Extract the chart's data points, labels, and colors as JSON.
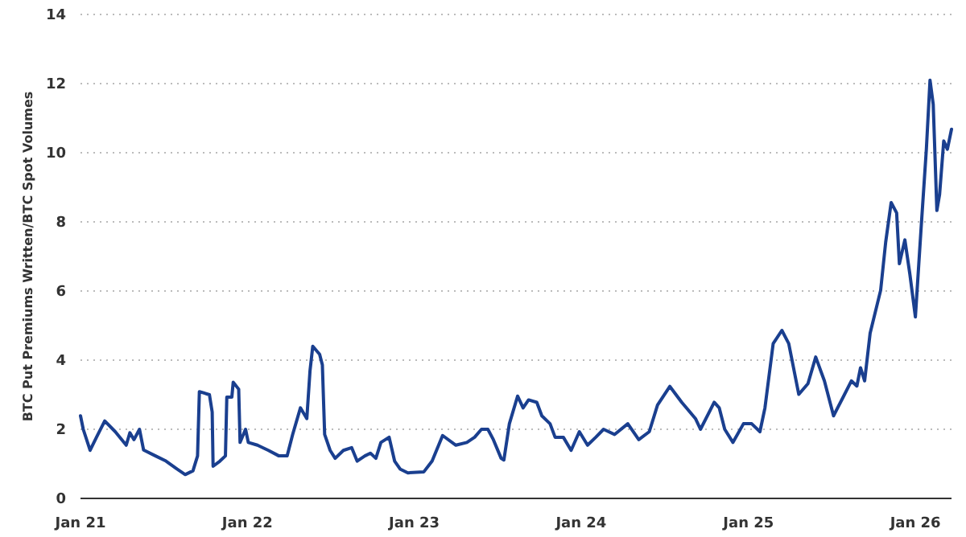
{
  "chart_data": {
    "type": "line",
    "ylabel": "BTC Put Premiums Written/BTC Spot Volumes",
    "xlim": [
      "2021-01-01",
      "2026-03-21"
    ],
    "xticks": [
      {
        "value": "2021-01-01",
        "label": "Jan 21"
      },
      {
        "value": "2022-01-01",
        "label": "Jan 22"
      },
      {
        "value": "2023-01-01",
        "label": "Jan 23"
      },
      {
        "value": "2024-01-01",
        "label": "Jan 24"
      },
      {
        "value": "2025-01-01",
        "label": "Jan 25"
      },
      {
        "value": "2026-01-01",
        "label": "Jan 26"
      }
    ],
    "ylim": [
      0,
      14
    ],
    "yticks": [
      0,
      2,
      4,
      6,
      8,
      10,
      12,
      14
    ],
    "grid": "y",
    "line_style": "solid",
    "marker": "none",
    "x": [
      "2021-01-01",
      "2021-01-07",
      "2021-01-22",
      "2021-02-05",
      "2021-02-23",
      "2021-03-18",
      "2021-04-11",
      "2021-04-19",
      "2021-04-28",
      "2021-05-10",
      "2021-05-19",
      "2021-06-14",
      "2021-07-07",
      "2021-07-31",
      "2021-08-18",
      "2021-09-04",
      "2021-09-14",
      "2021-09-18",
      "2021-10-10",
      "2021-10-16",
      "2021-10-18",
      "2021-11-02",
      "2021-11-14",
      "2021-11-17",
      "2021-11-28",
      "2021-12-01",
      "2021-12-13",
      "2021-12-16",
      "2021-12-28",
      "2022-01-03",
      "2022-01-23",
      "2022-02-16",
      "2022-03-11",
      "2022-03-29",
      "2022-04-10",
      "2022-04-27",
      "2022-05-11",
      "2022-05-18",
      "2022-05-24",
      "2022-06-08",
      "2022-06-14",
      "2022-06-19",
      "2022-07-01",
      "2022-07-12",
      "2022-07-30",
      "2022-08-17",
      "2022-08-29",
      "2022-09-15",
      "2022-09-27",
      "2022-10-09",
      "2022-10-20",
      "2022-11-07",
      "2022-11-19",
      "2022-12-01",
      "2022-12-18",
      "2023-01-22",
      "2023-02-09",
      "2023-03-04",
      "2023-04-02",
      "2023-04-26",
      "2023-05-13",
      "2023-05-28",
      "2023-06-11",
      "2023-06-23",
      "2023-07-10",
      "2023-07-16",
      "2023-07-28",
      "2023-08-15",
      "2023-08-27",
      "2023-09-08",
      "2023-09-26",
      "2023-10-07",
      "2023-10-25",
      "2023-11-05",
      "2023-11-23",
      "2023-12-10",
      "2023-12-28",
      "2024-01-15",
      "2024-02-02",
      "2024-02-19",
      "2024-03-14",
      "2024-04-12",
      "2024-05-06",
      "2024-05-29",
      "2024-06-16",
      "2024-07-13",
      "2024-08-08",
      "2024-09-07",
      "2024-09-18",
      "2024-10-18",
      "2024-10-29",
      "2024-11-10",
      "2024-11-28",
      "2024-12-21",
      "2025-01-08",
      "2025-01-26",
      "2025-02-06",
      "2025-02-24",
      "2025-03-15",
      "2025-03-30",
      "2025-04-21",
      "2025-05-11",
      "2025-05-28",
      "2025-06-16",
      "2025-07-06",
      "2025-07-27",
      "2025-08-14",
      "2025-08-26",
      "2025-09-03",
      "2025-09-12",
      "2025-09-24",
      "2025-10-17",
      "2025-10-28",
      "2025-11-09",
      "2025-11-21",
      "2025-11-27",
      "2025-12-09",
      "2025-12-20",
      "2026-01-01",
      "2026-01-13",
      "2026-01-25",
      "2026-02-02",
      "2026-02-09",
      "2026-02-17",
      "2026-02-23",
      "2026-03-04",
      "2026-03-12",
      "2026-03-21"
    ],
    "series": [
      {
        "color": "#1a3f8f",
        "values": [
          2.39,
          2.0,
          1.39,
          1.77,
          2.24,
          1.93,
          1.54,
          1.9,
          1.7,
          2.0,
          1.4,
          1.23,
          1.08,
          0.85,
          0.69,
          0.8,
          1.23,
          3.09,
          3.0,
          2.5,
          0.93,
          1.08,
          1.23,
          2.93,
          2.93,
          3.36,
          3.16,
          1.62,
          2.0,
          1.62,
          1.54,
          1.39,
          1.23,
          1.23,
          1.85,
          2.62,
          2.31,
          3.7,
          4.4,
          4.17,
          3.86,
          1.85,
          1.39,
          1.16,
          1.39,
          1.47,
          1.08,
          1.23,
          1.31,
          1.16,
          1.62,
          1.77,
          1.08,
          0.85,
          0.74,
          0.77,
          1.08,
          1.82,
          1.54,
          1.62,
          1.77,
          2.0,
          2.0,
          1.7,
          1.16,
          1.11,
          2.16,
          2.96,
          2.62,
          2.85,
          2.78,
          2.39,
          2.16,
          1.77,
          1.77,
          1.39,
          1.93,
          1.54,
          1.77,
          2.0,
          1.85,
          2.16,
          1.7,
          1.93,
          2.7,
          3.24,
          2.78,
          2.31,
          2.0,
          2.78,
          2.62,
          2.0,
          1.62,
          2.16,
          2.16,
          1.93,
          2.62,
          4.48,
          4.86,
          4.48,
          3.01,
          3.32,
          4.09,
          3.4,
          2.39,
          2.93,
          3.4,
          3.25,
          3.78,
          3.4,
          4.78,
          6.02,
          7.41,
          8.56,
          8.26,
          6.79,
          7.48,
          6.48,
          5.25,
          7.72,
          10.1,
          12.1,
          11.4,
          8.33,
          8.8,
          10.34,
          10.1,
          10.68
        ]
      }
    ]
  }
}
